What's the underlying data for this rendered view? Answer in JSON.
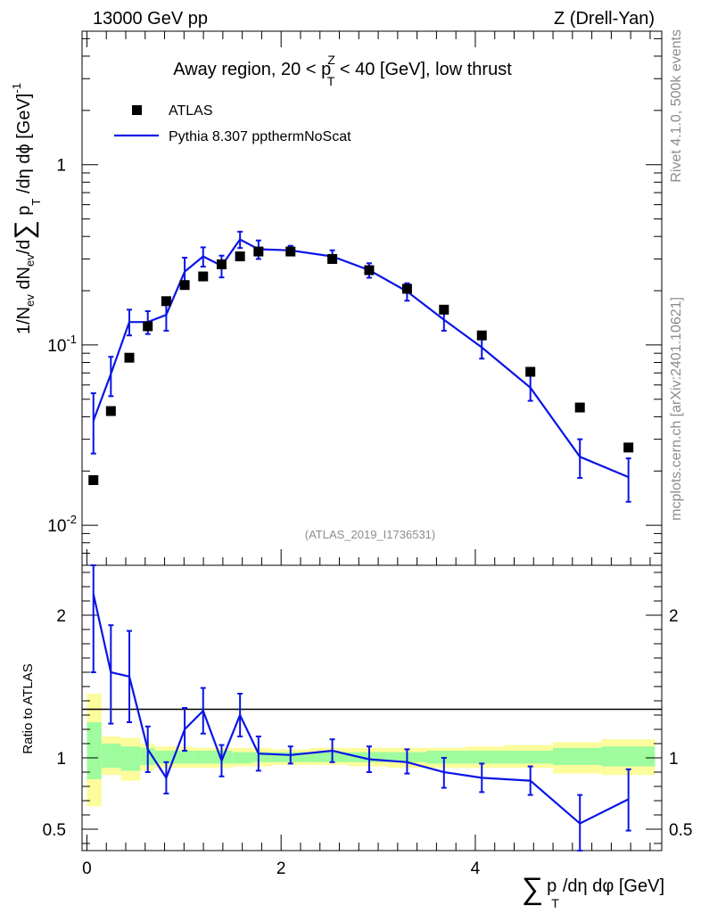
{
  "header": {
    "left": "13000 GeV pp",
    "right": "Z (Drell-Yan)"
  },
  "side": {
    "right_top": "Rivet 4.1.0,  500k events",
    "right_bottom": "mcplots.cern.ch [arXiv:2401.10621]"
  },
  "colors": {
    "mc": "#0a14e6",
    "band_stat": "#9efc9e",
    "band_total": "#fcfc9c",
    "data": "#000000"
  },
  "chart_data": [
    {
      "type": "scatter",
      "title": "Away region, 20 < p_T^Z < 40 [GeV], low thrust",
      "title_parts": {
        "pre": "Away region, 20 < p",
        "sup": "Z",
        "sub": "T",
        "post": " < 40 [GeV], low thrust"
      },
      "ylabel": "1/N_ev dN_ev/d∑ p_T /dη dφ  [GeV]^-1",
      "yscale": "log",
      "ylim": [
        0.006,
        5.5
      ],
      "xlim": [
        -0.05,
        5.92
      ],
      "y_ticks": [
        {
          "value": 0.01,
          "base": "10",
          "exp": "-2"
        },
        {
          "value": 0.1,
          "base": "10",
          "exp": "-1"
        },
        {
          "value": 1,
          "base": "1",
          "exp": ""
        }
      ],
      "watermark": "(ATLAS_2019_I1736531)",
      "legend": [
        {
          "name": "ATLAS",
          "marker": "square"
        },
        {
          "name": "Pythia 8.307 ppthermNoScat",
          "marker": "line"
        }
      ],
      "series": [
        {
          "name": "ATLAS",
          "x": [
            0.067,
            0.247,
            0.437,
            0.627,
            0.817,
            1.007,
            1.197,
            1.387,
            1.577,
            1.767,
            2.097,
            2.527,
            2.907,
            3.297,
            3.677,
            4.067,
            4.567,
            5.077,
            5.577
          ],
          "y": [
            0.0178,
            0.043,
            0.085,
            0.127,
            0.175,
            0.215,
            0.24,
            0.28,
            0.31,
            0.33,
            0.33,
            0.3,
            0.26,
            0.205,
            0.157,
            0.113,
            0.071,
            0.045,
            0.027
          ]
        },
        {
          "name": "Pythia 8.307 ppthermNoScat",
          "x": [
            0.067,
            0.247,
            0.437,
            0.627,
            0.817,
            1.007,
            1.197,
            1.387,
            1.577,
            1.767,
            2.097,
            2.527,
            2.907,
            3.297,
            3.677,
            4.067,
            4.567,
            5.077,
            5.577
          ],
          "y": [
            0.038,
            0.069,
            0.134,
            0.134,
            0.147,
            0.255,
            0.31,
            0.275,
            0.385,
            0.34,
            0.335,
            0.31,
            0.26,
            0.198,
            0.138,
            0.097,
            0.058,
            0.024,
            0.0185
          ],
          "err_lo": [
            0.025,
            0.052,
            0.113,
            0.115,
            0.12,
            0.205,
            0.272,
            0.237,
            0.345,
            0.3,
            0.315,
            0.285,
            0.236,
            0.176,
            0.12,
            0.084,
            0.049,
            0.0183,
            0.0135
          ],
          "err_hi": [
            0.054,
            0.086,
            0.157,
            0.154,
            0.175,
            0.305,
            0.348,
            0.313,
            0.425,
            0.38,
            0.355,
            0.335,
            0.284,
            0.22,
            0.156,
            0.11,
            0.068,
            0.03,
            0.0235
          ]
        }
      ]
    },
    {
      "type": "line",
      "ylabel": "Ratio to ATLAS",
      "xlabel": "∑ p_T /dη dφ [GeV]",
      "xlabel_parts": {
        "sum": "∑",
        "p": "p",
        "sub": "T",
        "rest": "/dη dφ [GeV]"
      },
      "ylim": [
        0.35,
        2.35
      ],
      "xlim": [
        -0.05,
        5.92
      ],
      "y_ticks": [
        0.5,
        1,
        2
      ],
      "y_tick_labels": [
        "0.5",
        "1",
        "2"
      ],
      "x_ticks": [
        0,
        2,
        4
      ],
      "x_tick_labels": [
        "0",
        "2",
        "4"
      ],
      "bins": [
        {
          "lo": 0.0,
          "hi": 0.15,
          "stat_lo": 0.85,
          "stat_hi": 1.25,
          "tot_lo": 0.66,
          "tot_hi": 1.45
        },
        {
          "lo": 0.15,
          "hi": 0.35,
          "stat_lo": 0.93,
          "stat_hi": 1.1,
          "tot_lo": 0.88,
          "tot_hi": 1.15
        },
        {
          "lo": 0.35,
          "hi": 0.55,
          "stat_lo": 0.91,
          "stat_hi": 1.08,
          "tot_lo": 0.84,
          "tot_hi": 1.14
        },
        {
          "lo": 0.55,
          "hi": 0.7,
          "stat_lo": 0.95,
          "stat_hi": 1.07,
          "tot_lo": 0.91,
          "tot_hi": 1.1
        },
        {
          "lo": 0.7,
          "hi": 0.9,
          "stat_lo": 0.96,
          "stat_hi": 1.05,
          "tot_lo": 0.93,
          "tot_hi": 1.08
        },
        {
          "lo": 0.9,
          "hi": 1.1,
          "stat_lo": 0.96,
          "stat_hi": 1.05,
          "tot_lo": 0.93,
          "tot_hi": 1.08
        },
        {
          "lo": 1.1,
          "hi": 1.3,
          "stat_lo": 0.96,
          "stat_hi": 1.05,
          "tot_lo": 0.93,
          "tot_hi": 1.07
        },
        {
          "lo": 1.3,
          "hi": 1.5,
          "stat_lo": 0.96,
          "stat_hi": 1.05,
          "tot_lo": 0.93,
          "tot_hi": 1.07
        },
        {
          "lo": 1.5,
          "hi": 1.7,
          "stat_lo": 0.96,
          "stat_hi": 1.04,
          "tot_lo": 0.94,
          "tot_hi": 1.07
        },
        {
          "lo": 1.7,
          "hi": 1.9,
          "stat_lo": 0.97,
          "stat_hi": 1.04,
          "tot_lo": 0.94,
          "tot_hi": 1.07
        },
        {
          "lo": 1.9,
          "hi": 2.3,
          "stat_lo": 0.97,
          "stat_hi": 1.04,
          "tot_lo": 0.95,
          "tot_hi": 1.06
        },
        {
          "lo": 2.3,
          "hi": 2.7,
          "stat_lo": 0.97,
          "stat_hi": 1.04,
          "tot_lo": 0.95,
          "tot_hi": 1.07
        },
        {
          "lo": 2.7,
          "hi": 3.1,
          "stat_lo": 0.97,
          "stat_hi": 1.04,
          "tot_lo": 0.94,
          "tot_hi": 1.07
        },
        {
          "lo": 3.1,
          "hi": 3.5,
          "stat_lo": 0.97,
          "stat_hi": 1.04,
          "tot_lo": 0.93,
          "tot_hi": 1.07
        },
        {
          "lo": 3.5,
          "hi": 3.9,
          "stat_lo": 0.96,
          "stat_hi": 1.05,
          "tot_lo": 0.93,
          "tot_hi": 1.07
        },
        {
          "lo": 3.9,
          "hi": 4.3,
          "stat_lo": 0.96,
          "stat_hi": 1.05,
          "tot_lo": 0.93,
          "tot_hi": 1.08
        },
        {
          "lo": 4.3,
          "hi": 4.8,
          "stat_lo": 0.96,
          "stat_hi": 1.05,
          "tot_lo": 0.93,
          "tot_hi": 1.09
        },
        {
          "lo": 4.8,
          "hi": 5.3,
          "stat_lo": 0.95,
          "stat_hi": 1.07,
          "tot_lo": 0.89,
          "tot_hi": 1.11
        },
        {
          "lo": 5.3,
          "hi": 5.85,
          "stat_lo": 0.94,
          "stat_hi": 1.08,
          "tot_lo": 0.88,
          "tot_hi": 1.13
        }
      ],
      "series": [
        {
          "name": "Pythia 8.307 ppthermNoScat / ATLAS",
          "x": [
            0.067,
            0.247,
            0.437,
            0.627,
            0.817,
            1.007,
            1.197,
            1.387,
            1.577,
            1.767,
            2.097,
            2.527,
            2.907,
            3.297,
            3.677,
            4.067,
            4.567,
            5.077,
            5.577
          ],
          "y": [
            2.15,
            1.6,
            1.57,
            1.06,
            0.86,
            1.2,
            1.33,
            0.98,
            1.3,
            1.03,
            1.02,
            1.05,
            0.99,
            0.97,
            0.9,
            0.86,
            0.84,
            0.54,
            0.71
          ],
          "err_lo": [
            1.6,
            1.24,
            1.25,
            0.9,
            0.75,
            1.05,
            1.17,
            0.87,
            1.15,
            0.91,
            0.96,
            0.97,
            0.9,
            0.89,
            0.79,
            0.76,
            0.74,
            0.34,
            0.49
          ],
          "err_hi": [
            2.35,
            1.93,
            1.89,
            1.22,
            0.97,
            1.35,
            1.49,
            1.09,
            1.45,
            1.15,
            1.08,
            1.13,
            1.08,
            1.06,
            1.0,
            0.96,
            0.94,
            0.74,
            0.92
          ]
        }
      ]
    }
  ]
}
